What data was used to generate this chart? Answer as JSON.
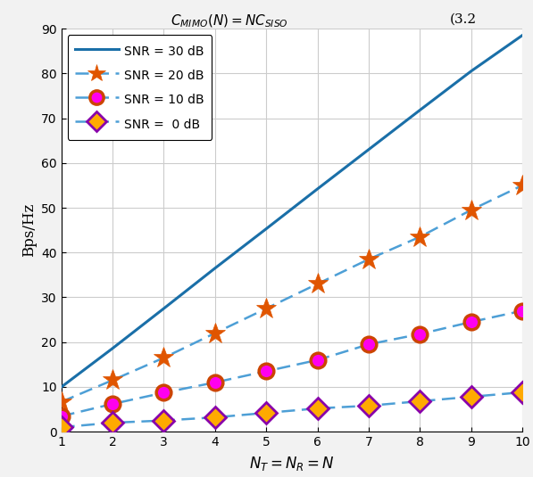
{
  "title_eq": "$C_{MIMO}(N) = NC_{SISO}$",
  "title_num": "(3.2",
  "xlabel": "$N_T = N_R = N$",
  "ylabel": "Bps/Hz",
  "N": [
    1,
    2,
    3,
    4,
    5,
    6,
    7,
    8,
    9,
    10
  ],
  "cap_30dB": [
    9.97,
    18.6,
    27.5,
    36.5,
    45.3,
    54.2,
    63.0,
    71.8,
    80.5,
    88.5
  ],
  "cap_20dB": [
    6.66,
    11.5,
    16.5,
    22.0,
    27.5,
    33.0,
    38.5,
    43.5,
    49.5,
    55.0
  ],
  "cap_10dB": [
    3.46,
    6.2,
    8.7,
    11.0,
    13.5,
    16.0,
    19.5,
    21.8,
    24.5,
    27.0
  ],
  "cap_0dB": [
    1.0,
    2.0,
    2.5,
    3.2,
    4.2,
    5.2,
    5.8,
    6.8,
    7.8,
    8.8
  ],
  "ylim": [
    0,
    90
  ],
  "xlim": [
    1,
    10
  ],
  "yticks": [
    0,
    10,
    20,
    30,
    40,
    50,
    60,
    70,
    80,
    90
  ],
  "xticks": [
    1,
    2,
    3,
    4,
    5,
    6,
    7,
    8,
    9,
    10
  ],
  "color_30_line": "#1a6fa8",
  "color_dash_line": "#4d9fd6",
  "color_star_face": "#e05500",
  "color_star_edge": "#e05500",
  "color_circle_face": "#ff00ee",
  "color_circle_edge": "#cc4400",
  "color_diamond_face": "#ffaa00",
  "color_diamond_edge": "#8800aa",
  "legend_labels": [
    "SNR = 30 dB",
    "SNR = 20 dB",
    "SNR = 10 dB",
    "SNR =  0 dB"
  ],
  "grid_color": "#cccccc",
  "bg_color": "#ffffff",
  "fig_bg": "#f2f2f2"
}
